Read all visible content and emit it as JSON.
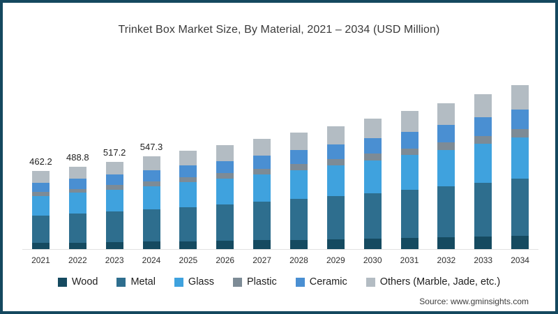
{
  "title": "Trinket Box Market Size, By Material, 2021 – 2034 (USD Million)",
  "source": "Source: www.gminsights.com",
  "colors": {
    "border": "#15485f",
    "axis_line": "#e2e2e2",
    "wood": "#154a60",
    "metal": "#2e6e8e",
    "glass": "#3fa2de",
    "plastic": "#7d8b96",
    "ceramic": "#4a8fd2",
    "others": "#b3bcc3"
  },
  "chart_data": {
    "type": "bar",
    "stacked": true,
    "title": "Trinket Box Market Size, By Material, 2021 – 2034 (USD Million)",
    "xlabel": "",
    "ylabel": "USD Million",
    "y_axis_visible": false,
    "grid": false,
    "legend_position": "bottom",
    "categories": [
      "2021",
      "2022",
      "2023",
      "2024",
      "2025",
      "2026",
      "2027",
      "2028",
      "2029",
      "2030",
      "2031",
      "2032",
      "2033",
      "2034"
    ],
    "totals": [
      462.2,
      488.8,
      517.2,
      547.3,
      580,
      614,
      650,
      688,
      728,
      771,
      816,
      864,
      915,
      969
    ],
    "total_labels": [
      "462.2",
      "488.8",
      "517.2",
      "547.3",
      "",
      "",
      "",
      "",
      "",
      "",
      "",
      "",
      "",
      ""
    ],
    "series": [
      {
        "name": "Wood",
        "color_key": "wood",
        "values": [
          37.0,
          39.1,
          41.4,
          43.8,
          46.4,
          49.1,
          52.0,
          55.0,
          58.2,
          61.7,
          65.3,
          69.1,
          73.2,
          77.5
        ]
      },
      {
        "name": "Metal",
        "color_key": "metal",
        "values": [
          161.8,
          171.1,
          181.0,
          191.6,
          203.0,
          214.9,
          227.5,
          240.8,
          254.8,
          269.9,
          285.6,
          302.4,
          320.3,
          339.2
        ]
      },
      {
        "name": "Glass",
        "color_key": "glass",
        "values": [
          115.6,
          122.2,
          129.3,
          136.8,
          145.0,
          153.5,
          162.5,
          172.0,
          182.0,
          192.8,
          204.0,
          216.0,
          228.8,
          242.3
        ]
      },
      {
        "name": "Plastic",
        "color_key": "plastic",
        "values": [
          23.1,
          24.4,
          25.9,
          27.4,
          29.0,
          30.7,
          32.5,
          34.4,
          36.4,
          38.6,
          40.8,
          43.2,
          45.8,
          48.5
        ]
      },
      {
        "name": "Ceramic",
        "color_key": "ceramic",
        "values": [
          55.5,
          58.7,
          62.1,
          65.7,
          69.6,
          73.7,
          78.0,
          82.6,
          87.4,
          92.5,
          97.9,
          103.7,
          109.8,
          116.3
        ]
      },
      {
        "name": "Others (Marble, Jade, etc.)",
        "color_key": "others",
        "values": [
          69.3,
          73.3,
          77.6,
          82.1,
          87.0,
          92.1,
          97.5,
          103.2,
          109.2,
          115.7,
          122.4,
          129.6,
          137.3,
          145.4
        ]
      }
    ]
  }
}
